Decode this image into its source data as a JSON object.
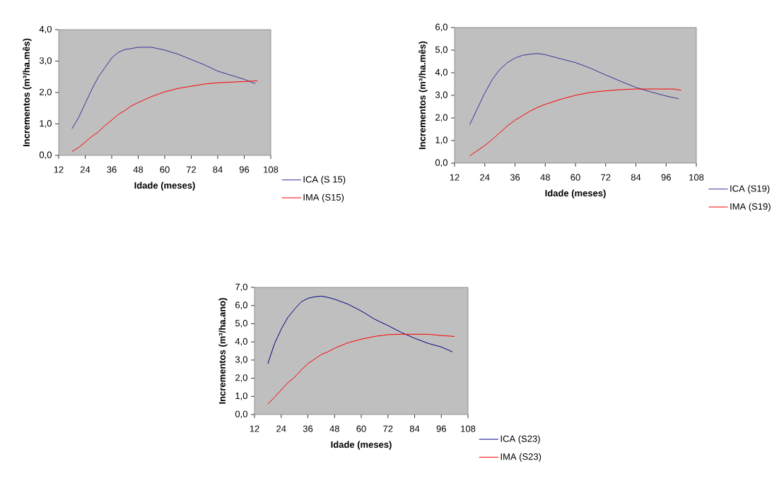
{
  "chart_data": [
    {
      "type": "line",
      "xlabel": "Idade (meses)",
      "ylabel": "Incrementos (m³/ha.mês)",
      "xlim": [
        12,
        108
      ],
      "xticks": [
        12,
        24,
        36,
        48,
        60,
        72,
        84,
        96,
        108
      ],
      "ylim": [
        0,
        4
      ],
      "yticks": [
        {
          "value": 0,
          "label": "0,0"
        },
        {
          "value": 1,
          "label": "1,0"
        },
        {
          "value": 2,
          "label": "2,0"
        },
        {
          "value": 3,
          "label": "3,0"
        },
        {
          "value": 4,
          "label": "4,0"
        }
      ],
      "grid": false,
      "legend": "bottom right",
      "marker": "none",
      "line_style": "solid",
      "series": [
        {
          "name": "ICA (S 15)",
          "color": "#333399",
          "x": [
            18,
            21,
            24,
            27,
            30,
            33,
            36,
            39,
            42,
            45,
            48,
            54,
            60,
            66,
            72,
            78,
            84,
            90,
            96,
            101
          ],
          "values": [
            0.85,
            1.2,
            1.65,
            2.1,
            2.5,
            2.8,
            3.1,
            3.28,
            3.37,
            3.4,
            3.44,
            3.44,
            3.35,
            3.22,
            3.05,
            2.88,
            2.68,
            2.55,
            2.42,
            2.28
          ]
        },
        {
          "name": "IMA (S15)",
          "color": "#ff0000",
          "x": [
            18,
            21,
            24,
            27,
            30,
            33,
            36,
            39,
            42,
            45,
            48,
            54,
            60,
            66,
            72,
            78,
            84,
            90,
            96,
            102
          ],
          "values": [
            0.12,
            0.25,
            0.42,
            0.6,
            0.75,
            0.95,
            1.12,
            1.3,
            1.43,
            1.58,
            1.68,
            1.87,
            2.02,
            2.13,
            2.2,
            2.27,
            2.31,
            2.33,
            2.35,
            2.37
          ]
        }
      ]
    },
    {
      "type": "line",
      "xlabel": "Idade (meses)",
      "ylabel": "Incrementos (m³/ha.mês)",
      "xlim": [
        12,
        108
      ],
      "xticks": [
        12,
        24,
        36,
        48,
        60,
        72,
        84,
        96,
        108
      ],
      "ylim": [
        0,
        6
      ],
      "yticks": [
        {
          "value": 0,
          "label": "0,0"
        },
        {
          "value": 1,
          "label": "1,0"
        },
        {
          "value": 2,
          "label": "2,0"
        },
        {
          "value": 3,
          "label": "3,0"
        },
        {
          "value": 4,
          "label": "4,0"
        },
        {
          "value": 5,
          "label": "5,0"
        },
        {
          "value": 6,
          "label": "6,0"
        }
      ],
      "grid": false,
      "legend": "bottom right",
      "marker": "none",
      "line_style": "solid",
      "series": [
        {
          "name": "ICA (S19)",
          "color": "#333399",
          "x": [
            18,
            21,
            24,
            27,
            30,
            33,
            36,
            39,
            42,
            45,
            48,
            54,
            60,
            66,
            72,
            78,
            84,
            90,
            96,
            101
          ],
          "values": [
            1.7,
            2.4,
            3.1,
            3.7,
            4.15,
            4.45,
            4.65,
            4.77,
            4.82,
            4.85,
            4.8,
            4.62,
            4.45,
            4.2,
            3.9,
            3.62,
            3.35,
            3.15,
            2.97,
            2.85
          ]
        },
        {
          "name": "IMA (S19)",
          "color": "#ff0000",
          "x": [
            18,
            21,
            24,
            27,
            30,
            33,
            36,
            39,
            42,
            45,
            48,
            54,
            60,
            66,
            72,
            78,
            84,
            90,
            96,
            99,
            102
          ],
          "values": [
            0.32,
            0.55,
            0.78,
            1.05,
            1.35,
            1.65,
            1.9,
            2.1,
            2.3,
            2.47,
            2.6,
            2.82,
            3.0,
            3.13,
            3.2,
            3.25,
            3.28,
            3.28,
            3.28,
            3.28,
            3.22
          ]
        }
      ]
    },
    {
      "type": "line",
      "xlabel": "Idade (meses)",
      "ylabel": "Incrementos (m³/ha.ano)",
      "xlim": [
        12,
        108
      ],
      "xticks": [
        12,
        24,
        36,
        48,
        60,
        72,
        84,
        96,
        108
      ],
      "ylim": [
        0,
        7
      ],
      "yticks": [
        {
          "value": 0,
          "label": "0,0"
        },
        {
          "value": 1,
          "label": "1,0"
        },
        {
          "value": 2,
          "label": "2,0"
        },
        {
          "value": 3,
          "label": "3,0"
        },
        {
          "value": 4,
          "label": "4,0"
        },
        {
          "value": 5,
          "label": "5,0"
        },
        {
          "value": 6,
          "label": "6,0"
        },
        {
          "value": 7,
          "label": "7,0"
        }
      ],
      "grid": false,
      "legend": "bottom right",
      "marker": "none",
      "line_style": "solid",
      "series": [
        {
          "name": "ICA (S23)",
          "color": "#000080",
          "x": [
            18,
            21,
            24,
            27,
            30,
            33,
            36,
            39,
            42,
            45,
            48,
            54,
            60,
            66,
            72,
            78,
            84,
            90,
            96,
            101
          ],
          "values": [
            2.8,
            3.9,
            4.7,
            5.35,
            5.8,
            6.2,
            6.4,
            6.48,
            6.52,
            6.45,
            6.35,
            6.08,
            5.7,
            5.25,
            4.9,
            4.52,
            4.2,
            3.92,
            3.72,
            3.45
          ]
        },
        {
          "name": "IMA (S23)",
          "color": "#ff0000",
          "x": [
            18,
            21,
            24,
            27,
            30,
            33,
            36,
            39,
            42,
            45,
            48,
            54,
            60,
            66,
            72,
            78,
            84,
            90,
            96,
            102
          ],
          "values": [
            0.58,
            0.95,
            1.35,
            1.75,
            2.05,
            2.45,
            2.8,
            3.05,
            3.3,
            3.45,
            3.65,
            3.95,
            4.15,
            4.3,
            4.4,
            4.42,
            4.42,
            4.42,
            4.35,
            4.3
          ]
        }
      ]
    }
  ]
}
